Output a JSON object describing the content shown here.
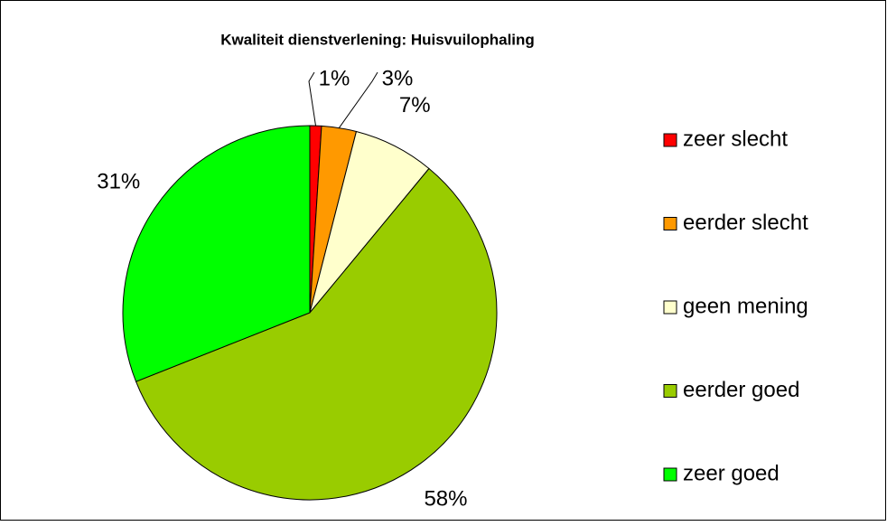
{
  "chart_data": {
    "type": "pie",
    "title": "Kwaliteit dienstverlening: Huisvuilophaling",
    "categories": [
      "zeer slecht",
      "eerder slecht",
      "geen mening",
      "eerder goed",
      "zeer goed"
    ],
    "values": [
      1,
      3,
      7,
      58,
      31
    ],
    "value_labels": [
      "1%",
      "3%",
      "7%",
      "58%",
      "31%"
    ],
    "colors": [
      "#ff0000",
      "#ff9900",
      "#ffffcc",
      "#99cc00",
      "#00ff00"
    ],
    "legend": "right"
  }
}
